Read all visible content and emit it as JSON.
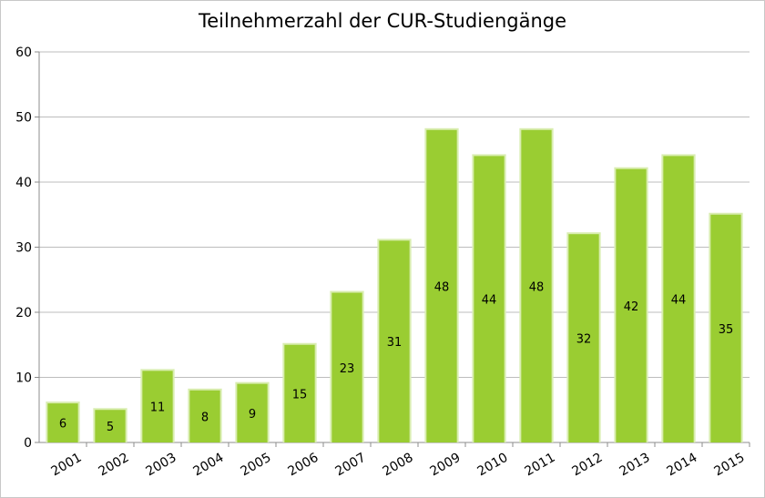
{
  "chart_data": {
    "type": "bar",
    "title": "Teilnehmerzahl der CUR-Studiengänge",
    "xlabel": "",
    "ylabel": "",
    "categories": [
      "2001",
      "2002",
      "2003",
      "2004",
      "2005",
      "2006",
      "2007",
      "2008",
      "2009",
      "2010",
      "2011",
      "2012",
      "2013",
      "2014",
      "2015"
    ],
    "values": [
      6,
      5,
      11,
      8,
      9,
      15,
      23,
      31,
      48,
      44,
      48,
      32,
      42,
      44,
      35
    ],
    "ylim": [
      0,
      60
    ],
    "yticks": [
      "0",
      "10",
      "20",
      "30",
      "40",
      "50",
      "60"
    ],
    "grid": true,
    "legend": "none",
    "bar_color": "#9ACD32",
    "bar_glow_color": "#D9EDB0"
  }
}
